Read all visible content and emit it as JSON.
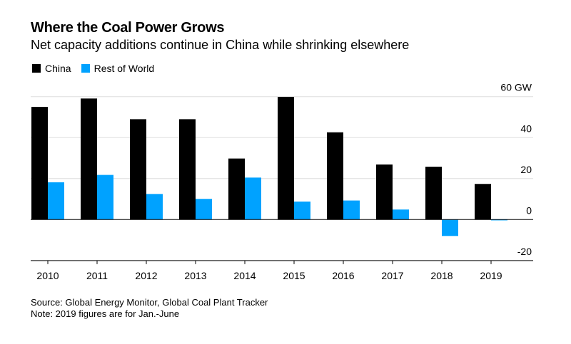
{
  "chart_data": {
    "type": "bar",
    "title": "Where the Coal Power Grows",
    "subtitle": "Net capacity additions continue in China while shrinking elsewhere",
    "categories": [
      "2010",
      "2011",
      "2012",
      "2013",
      "2014",
      "2015",
      "2016",
      "2017",
      "2018",
      "2019"
    ],
    "series": [
      {
        "name": "China",
        "color": "#000000",
        "values": [
          55.0,
          59.1,
          49.0,
          49.0,
          29.8,
          59.9,
          42.6,
          26.9,
          25.8,
          17.4
        ]
      },
      {
        "name": "Rest of World",
        "color": "#00a2ff",
        "values": [
          18.2,
          21.8,
          12.5,
          10.1,
          20.5,
          8.8,
          9.3,
          4.9,
          -8.0,
          -0.4
        ]
      }
    ],
    "ylim": [
      -20,
      60
    ],
    "yticks": [
      {
        "value": 60,
        "label": "60 GW"
      },
      {
        "value": 40,
        "label": "40"
      },
      {
        "value": 20,
        "label": "20"
      },
      {
        "value": 0,
        "label": "0"
      },
      {
        "value": -20,
        "label": "-20"
      }
    ],
    "yaxis_position": "right",
    "grid": true,
    "legend_position": "top-left"
  },
  "footer": {
    "source": "Source: Global Energy Monitor, Global Coal Plant Tracker",
    "note": "Note: 2019 figures are for Jan.-June"
  }
}
